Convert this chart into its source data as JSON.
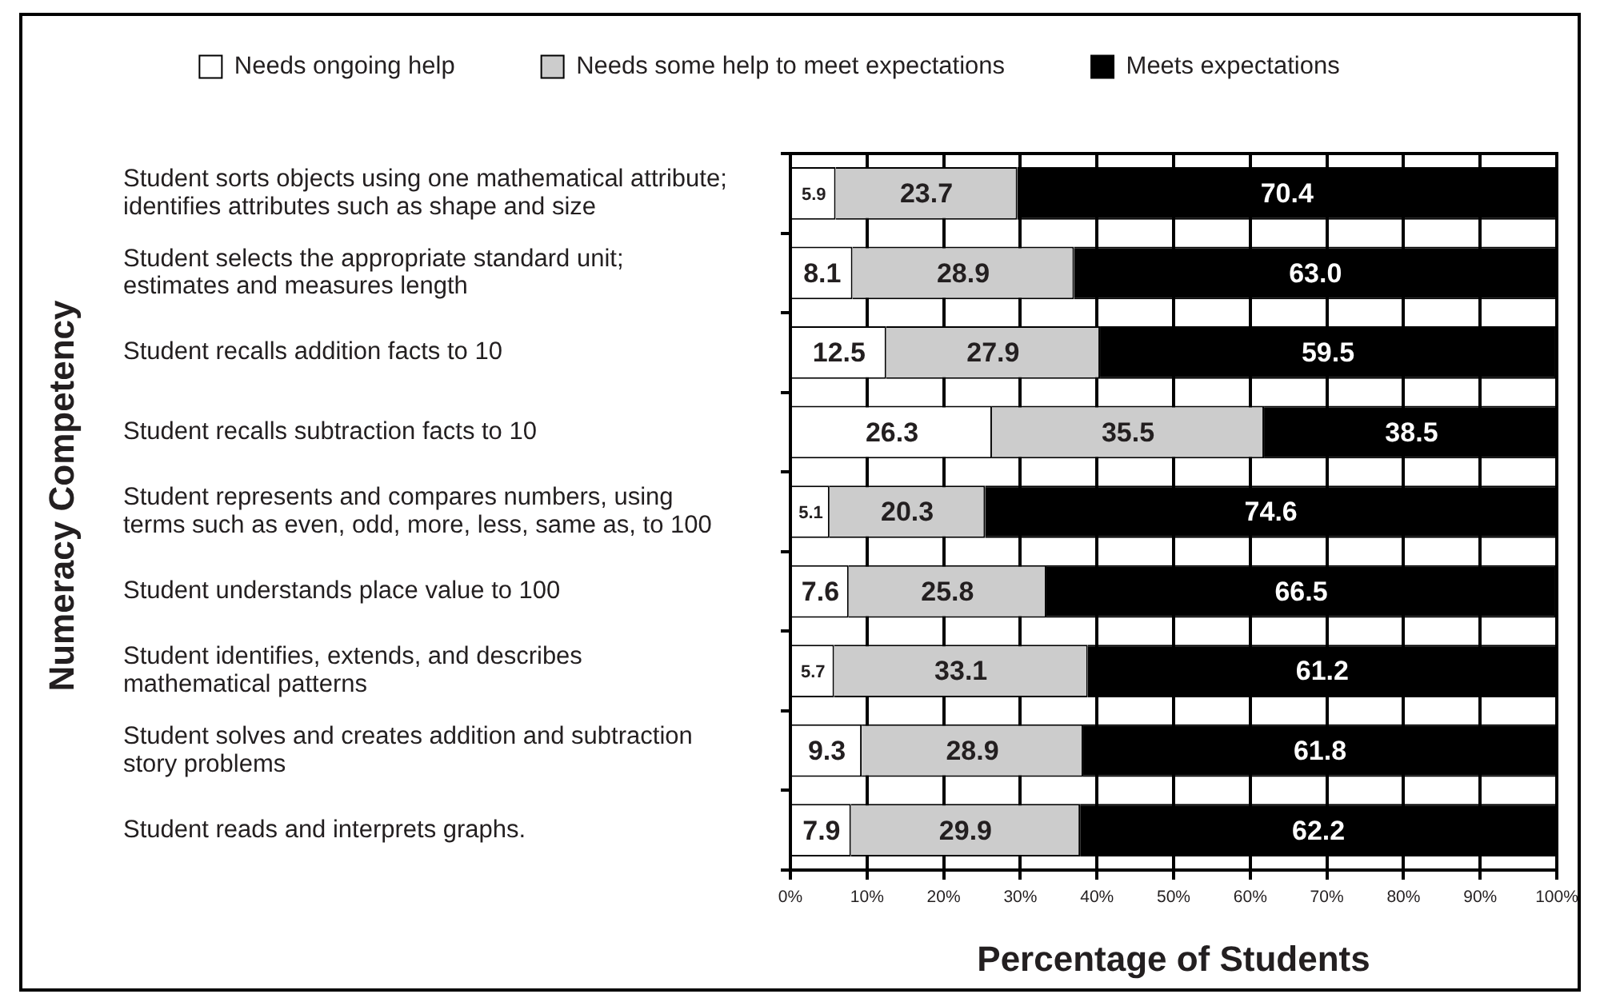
{
  "chart_data": {
    "type": "bar",
    "orientation": "horizontal",
    "stacked": true,
    "xlabel": "Percentage of Students",
    "ylabel": "Numeracy Competency",
    "categories": [
      "Student sorts objects using one mathematical attribute;\nidentifies attributes such as shape and size",
      "Student selects the appropriate standard unit;\nestimates and measures length",
      "Student recalls addition facts to 10",
      "Student recalls subtraction facts to 10",
      "Student represents and compares numbers, using\nterms such as even, odd, more, less, same as, to 100",
      "Student understands place value to 100",
      "Student identifies, extends, and describes\nmathematical patterns",
      "Student solves and creates addition and subtraction\nstory problems",
      "Student reads and interprets graphs."
    ],
    "series": [
      {
        "name": "Needs ongoing help",
        "color": "#ffffff",
        "values": [
          5.9,
          8.1,
          12.5,
          26.3,
          5.1,
          7.6,
          5.7,
          9.3,
          7.9
        ],
        "value_labels": [
          "5.9",
          "8.1",
          "12.5",
          "26.3",
          "5.1",
          "7.6",
          "5.7",
          "9.3",
          "7.9"
        ]
      },
      {
        "name": "Needs some help to meet expectations",
        "color": "#cccccc",
        "values": [
          23.7,
          28.9,
          27.9,
          35.5,
          20.3,
          25.8,
          33.1,
          28.9,
          29.9
        ],
        "value_labels": [
          "23.7",
          "28.9",
          "27.9",
          "35.5",
          "20.3",
          "25.8",
          "33.1",
          "28.9",
          "29.9"
        ]
      },
      {
        "name": "Meets expectations",
        "color": "#000000",
        "values": [
          70.4,
          63.0,
          59.5,
          38.5,
          74.6,
          66.5,
          61.2,
          61.8,
          62.2
        ],
        "value_labels": [
          "70.4",
          "63.0",
          "59.5",
          "38.5",
          "74.6",
          "66.5",
          "61.2",
          "61.8",
          "62.2"
        ]
      }
    ],
    "xlim": [
      0,
      100
    ],
    "xticks": [
      {
        "value": 0,
        "label": "0%"
      },
      {
        "value": 10,
        "label": "10%"
      },
      {
        "value": 20,
        "label": "20%"
      },
      {
        "value": 30,
        "label": "30%"
      },
      {
        "value": 40,
        "label": "40%"
      },
      {
        "value": 50,
        "label": "50%"
      },
      {
        "value": 60,
        "label": "60%"
      },
      {
        "value": 70,
        "label": "70%"
      },
      {
        "value": 80,
        "label": "80%"
      },
      {
        "value": 90,
        "label": "90%"
      },
      {
        "value": 100,
        "label": "100%"
      }
    ],
    "grid": "x",
    "legend": "top"
  }
}
